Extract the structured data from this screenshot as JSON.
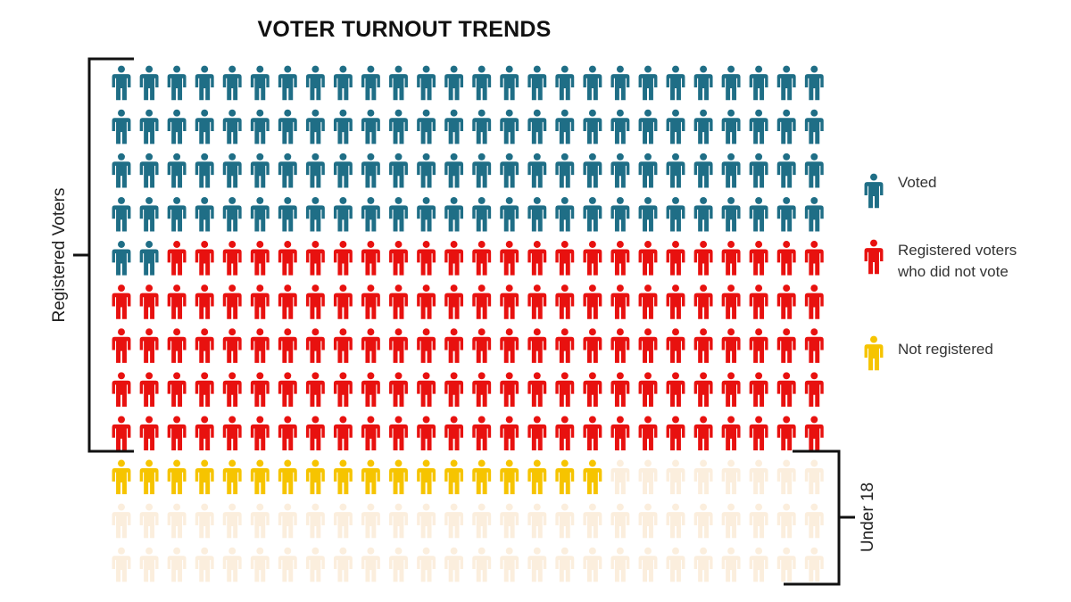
{
  "chart_data": {
    "type": "pictogram",
    "title": "VOTER TURNOUT TRENDS",
    "icons_per_row": 26,
    "rows": 12,
    "categories": [
      {
        "key": "voted",
        "label": "Voted",
        "count": 106,
        "color": "#1f6e86"
      },
      {
        "key": "registered_not_voted",
        "label_lines": [
          "Registered voters",
          "who did not vote"
        ],
        "count": 128,
        "color": "#e8110f"
      },
      {
        "key": "not_registered",
        "label": "Not registered",
        "count": 18,
        "color": "#f6c400"
      },
      {
        "key": "under_18",
        "label": "",
        "count": 60,
        "color": "#fbeedd"
      }
    ],
    "brackets": {
      "left": {
        "label": "Registered Voters"
      },
      "right": {
        "label": "Under 18"
      }
    },
    "legend": {
      "placement": "right"
    }
  }
}
